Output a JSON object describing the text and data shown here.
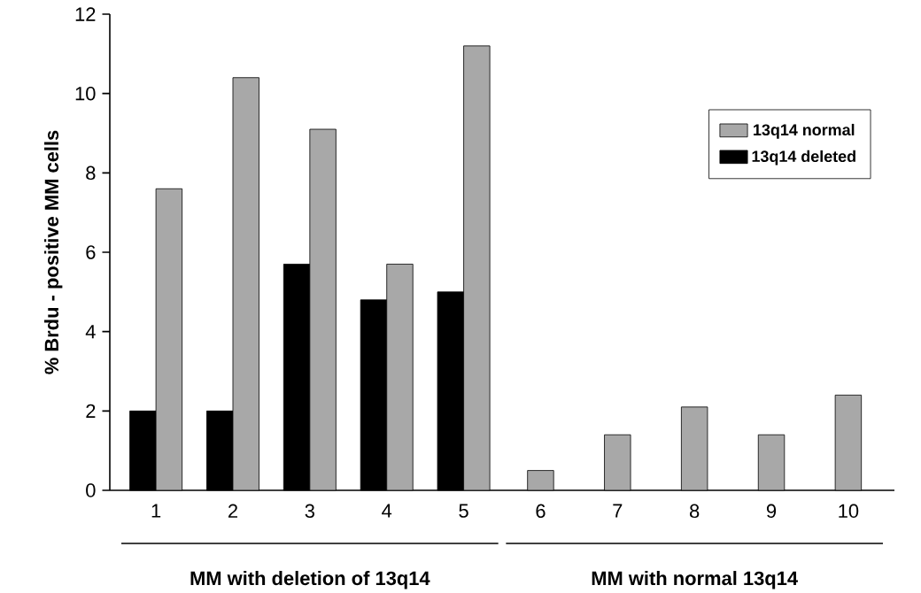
{
  "chart_data": {
    "type": "bar",
    "ylabel": "% Brdu - positive MM cells",
    "categories": [
      "1",
      "2",
      "3",
      "4",
      "5",
      "6",
      "7",
      "8",
      "9",
      "10"
    ],
    "series": [
      {
        "name": "13q14 deleted",
        "color": "#000000",
        "values": [
          2.0,
          2.0,
          5.7,
          4.8,
          5.0,
          null,
          null,
          null,
          null,
          null
        ]
      },
      {
        "name": "13q14 normal",
        "color": "#a8a8a8",
        "values": [
          7.6,
          10.4,
          9.1,
          5.7,
          11.2,
          0.5,
          1.4,
          2.1,
          1.4,
          2.4
        ]
      }
    ],
    "ylim": [
      0,
      12
    ],
    "yticks": [
      0,
      2,
      4,
      6,
      8,
      10,
      12
    ],
    "legend": "top right",
    "grid": false,
    "annotations": [
      "MM with deletion of 13q14",
      "MM with normal 13q14"
    ]
  }
}
